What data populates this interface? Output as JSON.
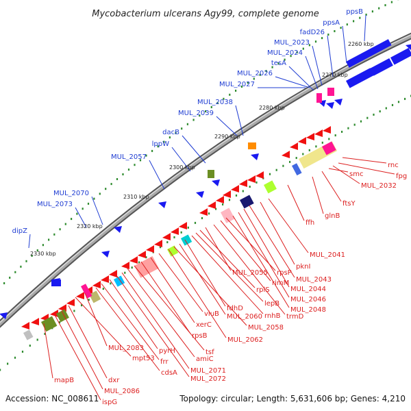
{
  "header": {
    "title": "Mycobacterium ulcerans Agy99, complete genome"
  },
  "footer": {
    "accession": "Accession: NC_008611",
    "summary": "Topology: circular; Length: 5,631,606 bp; Genes: 4,210"
  },
  "colors": {
    "forward_gene_label": "#1e3cd2",
    "reverse_gene_label": "#dc1e1e",
    "forward_cds": "#1a1af0",
    "reverse_cds": "#f01010",
    "backbone": "#808080",
    "tick": "#2e8b2e"
  },
  "scale": {
    "ticks": [
      "2260 kbp",
      "2270 kbp",
      "2280 kbp",
      "2290 kbp",
      "2300 kbp",
      "2310 kbp",
      "2320 kbp",
      "2330 kbp"
    ]
  },
  "forward_labels": [
    "ppsB",
    "ppsA",
    "fadD26",
    "MUL_2023",
    "MUL_2024",
    "tesA",
    "MUL_2026",
    "MUL_2027",
    "MUL_2038",
    "MUL_2039",
    "dacB",
    "lppW",
    "MUL_2057",
    "MUL_2070",
    "MUL_2073",
    "dipZ"
  ],
  "reverse_labels": [
    "rnc",
    "fpg",
    "MUL_2032",
    "smc",
    "ftsY",
    "glnB",
    "ffh",
    "MUL_2041",
    "pknI",
    "MUL_2043",
    "MUL_2044",
    "MUL_2046",
    "MUL_2048",
    "rpsP",
    "rimM",
    "trmD",
    "MUL_2055",
    "rplS",
    "lepB",
    "rnhB",
    "fdhD",
    "MUL_2060",
    "MUL_2058",
    "MUL_2062",
    "viuB",
    "xerC",
    "rpsB",
    "tsf",
    "amiC",
    "MUL_2071",
    "MUL_2072",
    "pyrH",
    "frr",
    "cdsA",
    "MUL_2083",
    "mpt53",
    "dxr",
    "MUL_2086",
    "ispG",
    "mapB"
  ]
}
